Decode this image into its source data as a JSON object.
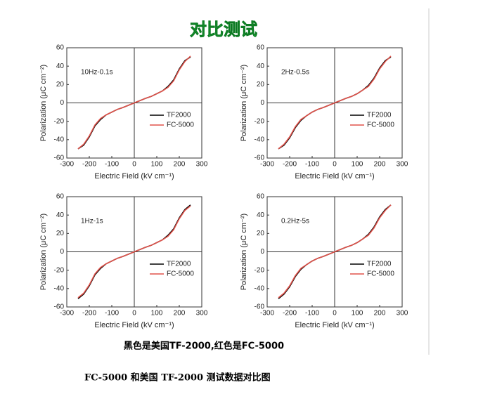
{
  "title": "对比测试",
  "chart_data": [
    {
      "type": "line",
      "annotation": "10Hz-0.1s",
      "x_label": "Electric Field (kV cm⁻¹)",
      "y_label": "Polarization (μC cm⁻²)",
      "x": [
        -250,
        -225,
        -200,
        -175,
        -150,
        -125,
        -100,
        -75,
        -50,
        -25,
        0,
        25,
        50,
        75,
        100,
        125,
        150,
        175,
        200,
        225,
        250
      ],
      "series": [
        {
          "name": "TF2000",
          "color": "#000000",
          "values": [
            -50,
            -46,
            -37,
            -25,
            -18,
            -13,
            -10,
            -7,
            -5,
            -2.5,
            0,
            2.5,
            5,
            7,
            10,
            13,
            18,
            25,
            37,
            46,
            50
          ]
        },
        {
          "name": "FC-5000",
          "color": "#e0524a",
          "values": [
            -50,
            -45,
            -36,
            -24,
            -17,
            -13,
            -10,
            -7,
            -5,
            -2.5,
            0,
            2.5,
            5,
            7,
            10,
            13,
            17,
            24,
            36,
            45,
            51
          ]
        }
      ],
      "xlim": [
        -300,
        300
      ],
      "xticks": [
        -300,
        -200,
        -100,
        0,
        100,
        200,
        300
      ],
      "ylim": [
        -60,
        60
      ],
      "yticks": [
        -60,
        -40,
        -20,
        0,
        20,
        40,
        60
      ]
    },
    {
      "type": "line",
      "annotation": "2Hz-0.5s",
      "x_label": "Electric Field (kV cm⁻¹)",
      "y_label": "Polarization (μC cm⁻²)",
      "x": [
        -250,
        -225,
        -200,
        -175,
        -150,
        -125,
        -100,
        -75,
        -50,
        -25,
        0,
        25,
        50,
        75,
        100,
        125,
        150,
        175,
        200,
        225,
        250
      ],
      "series": [
        {
          "name": "TF2000",
          "color": "#000000",
          "values": [
            -50,
            -46,
            -38,
            -27,
            -19,
            -14,
            -10,
            -7,
            -5,
            -2.5,
            0,
            2.5,
            5,
            7,
            10,
            14,
            19,
            27,
            38,
            46,
            50
          ]
        },
        {
          "name": "FC-5000",
          "color": "#e0524a",
          "values": [
            -50,
            -45,
            -37,
            -26,
            -18,
            -14,
            -10,
            -7,
            -5,
            -2.5,
            0,
            2.5,
            5,
            7,
            10,
            14,
            18,
            26,
            37,
            45,
            51
          ]
        }
      ],
      "xlim": [
        -300,
        300
      ],
      "xticks": [
        -300,
        -200,
        -100,
        0,
        100,
        200,
        300
      ],
      "ylim": [
        -60,
        60
      ],
      "yticks": [
        -60,
        -40,
        -20,
        0,
        20,
        40,
        60
      ]
    },
    {
      "type": "line",
      "annotation": "1Hz-1s",
      "x_label": "Electric Field (kV cm⁻¹)",
      "y_label": "Polarization (μC cm⁻²)",
      "x": [
        -250,
        -225,
        -200,
        -175,
        -150,
        -125,
        -100,
        -75,
        -50,
        -25,
        0,
        25,
        50,
        75,
        100,
        125,
        150,
        175,
        200,
        225,
        250
      ],
      "series": [
        {
          "name": "TF2000",
          "color": "#000000",
          "values": [
            -51,
            -46,
            -37,
            -25,
            -18,
            -13,
            -10,
            -7,
            -5,
            -2.5,
            0,
            2.5,
            5,
            7,
            10,
            13,
            18,
            25,
            37,
            46,
            51
          ]
        },
        {
          "name": "FC-5000",
          "color": "#e0524a",
          "values": [
            -50,
            -45,
            -36,
            -24,
            -17,
            -13,
            -10,
            -7,
            -5,
            -2.5,
            0,
            2.5,
            5,
            7,
            10,
            13,
            17,
            24,
            36,
            45,
            50
          ]
        }
      ],
      "xlim": [
        -300,
        300
      ],
      "xticks": [
        -300,
        -200,
        -100,
        0,
        100,
        200,
        300
      ],
      "ylim": [
        -60,
        60
      ],
      "yticks": [
        -60,
        -40,
        -20,
        0,
        20,
        40,
        60
      ]
    },
    {
      "type": "line",
      "annotation": "0.2Hz-5s",
      "x_label": "Electric Field (kV cm⁻¹)",
      "y_label": "Polarization (μC cm⁻²)",
      "x": [
        -250,
        -225,
        -200,
        -175,
        -150,
        -125,
        -100,
        -75,
        -50,
        -25,
        0,
        25,
        50,
        75,
        100,
        125,
        150,
        175,
        200,
        225,
        250
      ],
      "series": [
        {
          "name": "TF2000",
          "color": "#000000",
          "values": [
            -51,
            -46,
            -38,
            -27,
            -19,
            -14,
            -10,
            -7,
            -5,
            -2.5,
            0,
            2.5,
            5,
            7,
            10,
            14,
            19,
            27,
            38,
            46,
            51
          ]
        },
        {
          "name": "FC-5000",
          "color": "#e0524a",
          "values": [
            -50,
            -45,
            -37,
            -26,
            -18,
            -14,
            -10,
            -7,
            -5,
            -2.5,
            0,
            2.5,
            5,
            7,
            10,
            14,
            18,
            26,
            37,
            45,
            51
          ]
        }
      ],
      "xlim": [
        -300,
        300
      ],
      "xticks": [
        -300,
        -200,
        -100,
        0,
        100,
        200,
        300
      ],
      "ylim": [
        -60,
        60
      ],
      "yticks": [
        -60,
        -40,
        -20,
        0,
        20,
        40,
        60
      ]
    }
  ],
  "note": "黑色是美国TF-2000,红色是FC-5000",
  "caption": "FC-5000 和美国 TF-2000 测试数据对比图"
}
